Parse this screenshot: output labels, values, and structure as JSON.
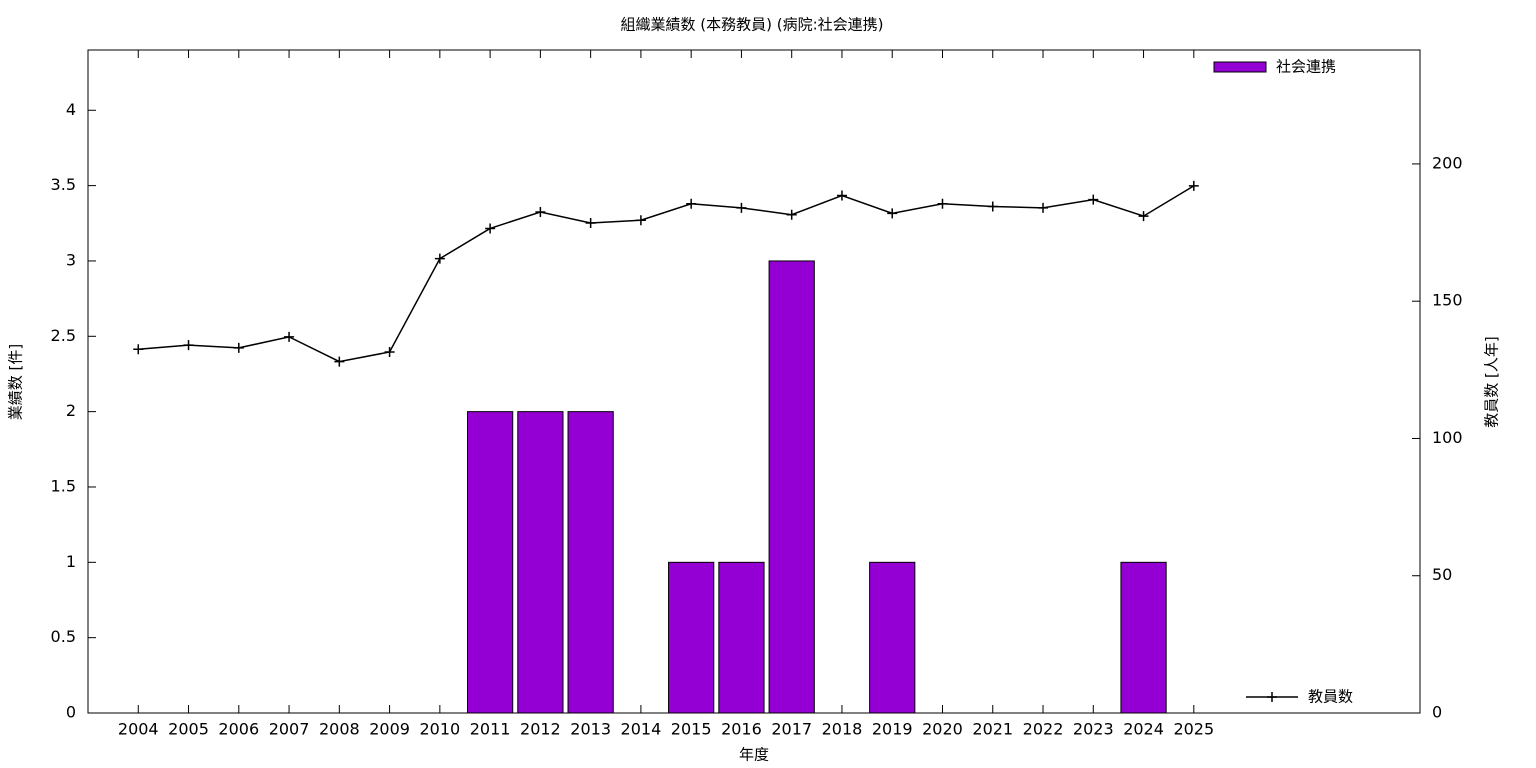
{
  "chart_data": {
    "type": "bar_line",
    "title": "組織業績数 (本務教員) (病院:社会連携)",
    "xlabel": "年度",
    "ylabel": "業績数 [件]",
    "y2label": "教員数 [人年]",
    "x": [
      2004,
      2005,
      2006,
      2007,
      2008,
      2009,
      2010,
      2011,
      2012,
      2013,
      2014,
      2015,
      2016,
      2017,
      2018,
      2019,
      2020,
      2021,
      2022,
      2023,
      2024,
      2025
    ],
    "xlim": [
      2003,
      2029.5
    ],
    "xticks": [
      2004,
      2005,
      2006,
      2007,
      2008,
      2009,
      2010,
      2011,
      2012,
      2013,
      2014,
      2015,
      2016,
      2017,
      2018,
      2019,
      2020,
      2021,
      2022,
      2023,
      2024,
      2025
    ],
    "ylim": [
      0,
      4.4
    ],
    "yticks": [
      0,
      0.5,
      1,
      1.5,
      2,
      2.5,
      3,
      3.5,
      4
    ],
    "y2lim": [
      0,
      241.5
    ],
    "y2ticks": [
      0,
      50,
      100,
      150,
      200
    ],
    "series": [
      {
        "name": "社会連携",
        "type": "bar",
        "color": "#9400d3",
        "legend": "top-right",
        "values": [
          0,
          0,
          0,
          0,
          0,
          0,
          0,
          2,
          2,
          2,
          0,
          1,
          1,
          3,
          0,
          1,
          0,
          0,
          0,
          0,
          1,
          0
        ]
      },
      {
        "name": "教員数",
        "type": "line",
        "axis": "y2",
        "color": "#000000",
        "legend": "bottom-right",
        "values": [
          132.5,
          134,
          133,
          137,
          128,
          131.5,
          165.5,
          176.5,
          182.5,
          178.5,
          179.5,
          185.5,
          184,
          181.5,
          188.5,
          182,
          185.5,
          184.5,
          184,
          187,
          181,
          192
        ]
      }
    ]
  }
}
